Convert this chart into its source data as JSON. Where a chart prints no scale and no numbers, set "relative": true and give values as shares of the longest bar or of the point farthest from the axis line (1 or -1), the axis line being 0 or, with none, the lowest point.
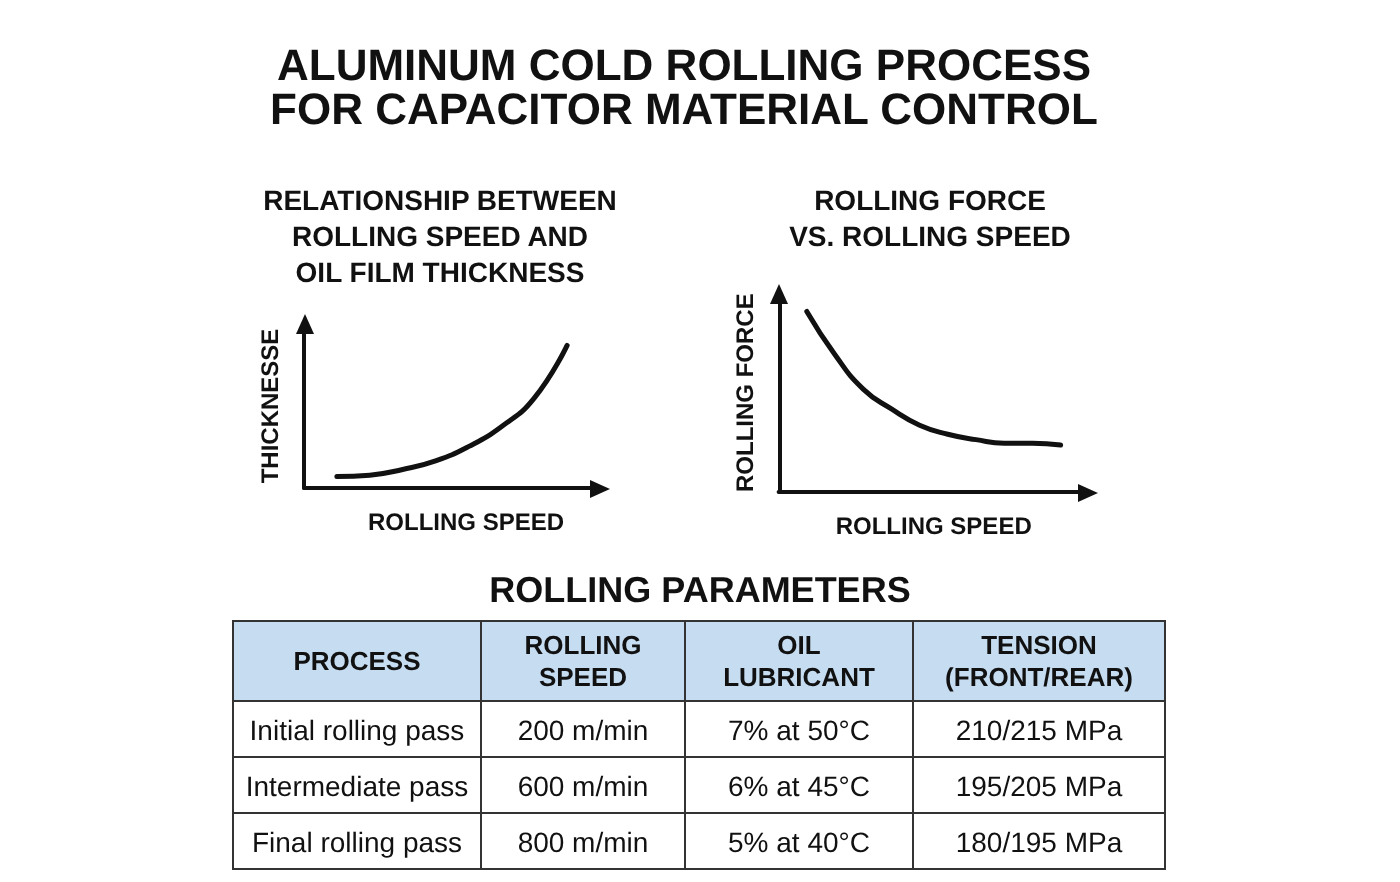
{
  "chart_data": [
    {
      "type": "other",
      "title": "ALUMINUM COLD ROLLING PROCESS\nFOR CAPACITOR MATERIAL CONTROL"
    },
    {
      "type": "line",
      "title": "RELATIONSHIP BETWEEN\nROLLING SPEED AND\nOIL FILM THICKNESS",
      "xlabel": "ROLLING SPEED",
      "ylabel": "THICKNESSE",
      "relative": true,
      "marker": "none",
      "color": "#111111",
      "categories": [
        null,
        null,
        null,
        null,
        null,
        null,
        null,
        null,
        null,
        null
      ],
      "values": [
        null,
        0.08,
        0.09,
        0.13,
        0.19,
        0.29,
        0.43,
        0.63,
        1,
        null
      ]
    },
    {
      "type": "line",
      "title": "ROLLING FORCE\nVS. ROLLING SPEED",
      "xlabel": "ROLLING SPEED",
      "ylabel": "ROLLING FORCE",
      "relative": true,
      "marker": "none",
      "color": "#111111",
      "categories": [
        null,
        null,
        null,
        null,
        null,
        null,
        null,
        null,
        null,
        null,
        null,
        null
      ],
      "values": [
        null,
        1,
        0.76,
        0.57,
        0.46,
        0.37,
        0.32,
        0.29,
        0.27,
        0.27,
        0.26,
        null
      ]
    },
    {
      "type": "other",
      "title": "ROLLING PARAMETERS",
      "categories": [
        "PROCESS",
        "ROLLING\nSPEED",
        "OIL\nLUBRICANT",
        "TENSION\n(FRONT/REAR)"
      ],
      "cell_labels": [
        [
          "Initial rolling pass",
          "200 m/min",
          "7% at 50°C",
          "210/215 MPa"
        ],
        [
          "Intermediate pass",
          "600 m/min",
          "6% at 45°C",
          "195/205 MPa"
        ],
        [
          "Final rolling pass",
          "800 m/min",
          "5% at 40°C",
          "180/195 MPa"
        ]
      ]
    }
  ]
}
